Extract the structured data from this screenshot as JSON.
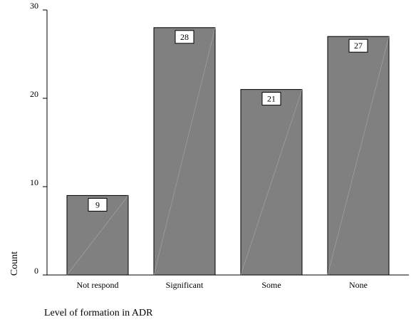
{
  "chart_data": {
    "type": "bar",
    "categories": [
      "Not respond",
      "Significant",
      "Some",
      "None"
    ],
    "values": [
      9,
      28,
      21,
      27
    ],
    "data_labels": [
      "9",
      "28",
      "21",
      "27"
    ],
    "ylabel": "Count",
    "xlabel": "Level of formation in ADR",
    "ylim": [
      0,
      30
    ],
    "yticks": [
      0,
      10,
      20,
      30
    ],
    "bar_color": "#808080",
    "grid": false,
    "legend": "none"
  }
}
